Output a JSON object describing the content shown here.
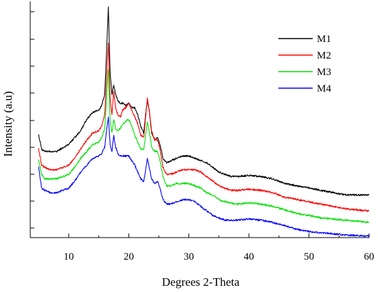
{
  "chart_data": {
    "type": "line",
    "xlabel": "Degrees 2-Theta",
    "ylabel": "Intensity (a.u)",
    "xlim": [
      3.6,
      60
    ],
    "xticks": [
      10,
      20,
      30,
      40,
      50,
      60
    ],
    "ylim": [
      0,
      1.0
    ],
    "y_tick_labels_shown": false,
    "grid": false,
    "legend_position": "top-right",
    "legend": [
      "M1",
      "M2",
      "M3",
      "M4"
    ],
    "series": [
      {
        "name": "M1",
        "color": "#000000",
        "x": [
          5,
          5.5,
          6,
          7,
          8,
          9,
          10,
          11,
          12,
          13,
          14,
          15,
          15.5,
          16,
          16.3,
          16.6,
          16.9,
          17.2,
          17.5,
          17.8,
          18.2,
          18.6,
          19,
          19.5,
          20,
          20.5,
          21,
          21.5,
          22,
          22.5,
          22.8,
          23.1,
          23.4,
          23.8,
          24.3,
          24.8,
          25.2,
          25.7,
          26.3,
          27,
          28,
          29,
          30,
          31,
          32,
          33,
          34,
          35,
          36,
          37,
          38,
          40,
          42,
          44,
          46,
          48,
          50,
          52,
          54,
          56,
          58,
          60
        ],
        "y": [
          0.44,
          0.38,
          0.37,
          0.37,
          0.37,
          0.385,
          0.4,
          0.43,
          0.46,
          0.51,
          0.54,
          0.55,
          0.57,
          0.62,
          0.8,
          1.0,
          0.71,
          0.62,
          0.66,
          0.62,
          0.59,
          0.58,
          0.58,
          0.57,
          0.58,
          0.56,
          0.56,
          0.53,
          0.48,
          0.45,
          0.53,
          0.59,
          0.55,
          0.45,
          0.42,
          0.43,
          0.4,
          0.34,
          0.32,
          0.33,
          0.34,
          0.35,
          0.35,
          0.34,
          0.33,
          0.32,
          0.3,
          0.28,
          0.27,
          0.26,
          0.26,
          0.265,
          0.26,
          0.25,
          0.23,
          0.22,
          0.21,
          0.2,
          0.19,
          0.18,
          0.18,
          0.18
        ]
      },
      {
        "name": "M2",
        "color": "#ff0000",
        "x": [
          5,
          5.5,
          6,
          7,
          8,
          9,
          10,
          11,
          12,
          13,
          14,
          15,
          15.5,
          16,
          16.3,
          16.6,
          16.9,
          17.2,
          17.5,
          17.8,
          18.2,
          18.6,
          19,
          19.5,
          20,
          20.5,
          21,
          21.5,
          22,
          22.5,
          22.8,
          23.1,
          23.4,
          23.8,
          24.3,
          24.8,
          25.2,
          25.7,
          26.3,
          27,
          28,
          29,
          30,
          31,
          32,
          33,
          34,
          35,
          36,
          37,
          38,
          40,
          42,
          44,
          46,
          48,
          50,
          52,
          54,
          56,
          58,
          60
        ],
        "y": [
          0.38,
          0.31,
          0.3,
          0.29,
          0.29,
          0.3,
          0.31,
          0.34,
          0.38,
          0.42,
          0.45,
          0.46,
          0.48,
          0.53,
          0.69,
          0.84,
          0.6,
          0.53,
          0.63,
          0.56,
          0.53,
          0.52,
          0.55,
          0.56,
          0.58,
          0.55,
          0.52,
          0.49,
          0.44,
          0.43,
          0.52,
          0.6,
          0.55,
          0.46,
          0.42,
          0.42,
          0.38,
          0.3,
          0.27,
          0.27,
          0.28,
          0.29,
          0.29,
          0.29,
          0.28,
          0.26,
          0.24,
          0.22,
          0.21,
          0.2,
          0.2,
          0.205,
          0.2,
          0.19,
          0.17,
          0.16,
          0.15,
          0.14,
          0.13,
          0.12,
          0.115,
          0.11
        ]
      },
      {
        "name": "M3",
        "color": "#00e000",
        "x": [
          5,
          5.5,
          6,
          7,
          8,
          9,
          10,
          11,
          12,
          13,
          14,
          15,
          15.5,
          16,
          16.3,
          16.6,
          16.9,
          17.2,
          17.5,
          17.8,
          18.2,
          18.6,
          19,
          19.5,
          20,
          20.5,
          21,
          21.5,
          22,
          22.5,
          22.8,
          23.1,
          23.4,
          23.8,
          24.3,
          24.8,
          25.2,
          25.7,
          26.3,
          27,
          28,
          29,
          30,
          31,
          32,
          33,
          34,
          35,
          36,
          37,
          38,
          40,
          42,
          44,
          46,
          48,
          50,
          52,
          54,
          56,
          58,
          60
        ],
        "y": [
          0.33,
          0.27,
          0.25,
          0.25,
          0.25,
          0.26,
          0.27,
          0.3,
          0.34,
          0.37,
          0.4,
          0.41,
          0.43,
          0.47,
          0.6,
          0.73,
          0.5,
          0.45,
          0.51,
          0.47,
          0.46,
          0.47,
          0.49,
          0.5,
          0.51,
          0.48,
          0.44,
          0.41,
          0.38,
          0.38,
          0.44,
          0.5,
          0.46,
          0.39,
          0.37,
          0.37,
          0.33,
          0.26,
          0.22,
          0.22,
          0.23,
          0.23,
          0.23,
          0.22,
          0.21,
          0.19,
          0.18,
          0.16,
          0.15,
          0.145,
          0.14,
          0.145,
          0.14,
          0.13,
          0.115,
          0.1,
          0.09,
          0.08,
          0.075,
          0.07,
          0.065,
          0.06
        ]
      },
      {
        "name": "M4",
        "color": "#0000ff",
        "x": [
          5,
          5.5,
          6,
          7,
          8,
          9,
          10,
          11,
          12,
          13,
          14,
          15,
          15.5,
          16,
          16.3,
          16.6,
          16.9,
          17.2,
          17.5,
          17.8,
          18.2,
          18.6,
          19,
          19.5,
          20,
          20.5,
          21,
          21.5,
          22,
          22.5,
          22.8,
          23.1,
          23.4,
          23.8,
          24.3,
          24.8,
          25.2,
          25.7,
          26.3,
          27,
          28,
          29,
          30,
          31,
          32,
          33,
          34,
          35,
          36,
          37,
          38,
          40,
          42,
          44,
          46,
          48,
          50,
          52,
          54,
          56,
          58,
          60
        ],
        "y": [
          0.3,
          0.21,
          0.2,
          0.19,
          0.19,
          0.2,
          0.21,
          0.24,
          0.28,
          0.31,
          0.34,
          0.35,
          0.36,
          0.39,
          0.46,
          0.52,
          0.4,
          0.37,
          0.44,
          0.39,
          0.36,
          0.35,
          0.35,
          0.35,
          0.35,
          0.33,
          0.31,
          0.28,
          0.25,
          0.24,
          0.29,
          0.34,
          0.3,
          0.25,
          0.23,
          0.24,
          0.21,
          0.16,
          0.14,
          0.14,
          0.15,
          0.16,
          0.16,
          0.15,
          0.13,
          0.11,
          0.09,
          0.08,
          0.07,
          0.07,
          0.07,
          0.075,
          0.07,
          0.06,
          0.045,
          0.03,
          0.02,
          0.015,
          0.01,
          0.005,
          0.003,
          0.0
        ]
      }
    ]
  }
}
